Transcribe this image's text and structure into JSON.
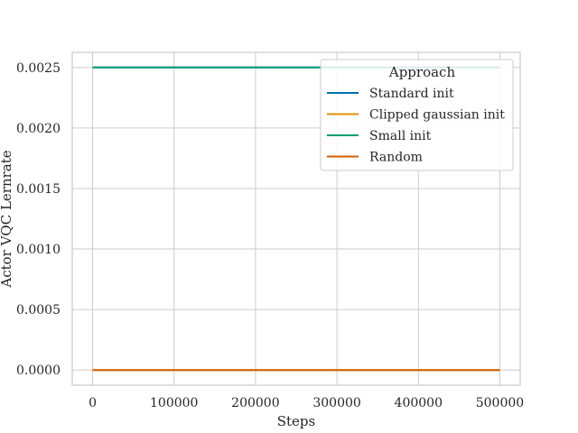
{
  "chart_data": {
    "type": "line",
    "title": "",
    "xlabel": "Steps",
    "ylabel": "Actor VQC Lernrate",
    "xlim": [
      -25000,
      525000
    ],
    "ylim": [
      -0.000125,
      0.002625
    ],
    "xticks": [
      0,
      100000,
      200000,
      300000,
      400000,
      500000
    ],
    "xtick_labels": [
      "0",
      "100000",
      "200000",
      "300000",
      "400000",
      "500000"
    ],
    "yticks": [
      0.0,
      0.0005,
      0.001,
      0.0015,
      0.002,
      0.0025
    ],
    "ytick_labels": [
      "0.0000",
      "0.0005",
      "0.0010",
      "0.0015",
      "0.0020",
      "0.0025"
    ],
    "grid": true,
    "legend": {
      "title": "Approach",
      "position": "top-right"
    },
    "series": [
      {
        "name": "Standard init",
        "color": "#0173b2",
        "x": [
          0,
          500000
        ],
        "y": [
          0.0025,
          0.0025
        ]
      },
      {
        "name": "Clipped gaussian init",
        "color": "#de8f05",
        "x": [
          0,
          500000
        ],
        "y": [
          0.0,
          0.0
        ]
      },
      {
        "name": "Small init",
        "color": "#029e73",
        "x": [
          0,
          500000
        ],
        "y": [
          0.0025,
          0.0025
        ]
      },
      {
        "name": "Random",
        "color": "#d55e00",
        "x": [
          0,
          500000
        ],
        "y": [
          0.0,
          0.0
        ]
      }
    ]
  }
}
